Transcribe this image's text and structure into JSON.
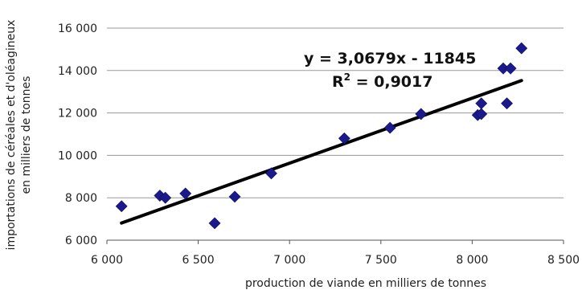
{
  "chart_data": {
    "type": "scatter",
    "title": "",
    "xlabel": "production de viande en milliers de tonnes",
    "ylabel_lines": [
      "importations de céréales et d'oléagineux",
      "en milliers de tonnes"
    ],
    "xlim": [
      6000,
      8500
    ],
    "ylim": [
      6000,
      16000
    ],
    "x_ticks": [
      6000,
      6500,
      7000,
      7500,
      8000,
      8500
    ],
    "x_tick_labels": [
      "6 000",
      "6 500",
      "7 000",
      "7 500",
      "8 000",
      "8 500"
    ],
    "y_ticks": [
      6000,
      8000,
      10000,
      12000,
      14000,
      16000
    ],
    "y_tick_labels": [
      "6 000",
      "8 000",
      "10 000",
      "12 000",
      "14 000",
      "16 000"
    ],
    "grid": "horizontal",
    "marker_color": "#1a1a8c",
    "trend_color": "#000000",
    "points": [
      {
        "x": 6080,
        "y": 7600
      },
      {
        "x": 6290,
        "y": 8100
      },
      {
        "x": 6320,
        "y": 8000
      },
      {
        "x": 6430,
        "y": 8200
      },
      {
        "x": 6590,
        "y": 6800
      },
      {
        "x": 6700,
        "y": 8050
      },
      {
        "x": 6900,
        "y": 9150
      },
      {
        "x": 7300,
        "y": 10800
      },
      {
        "x": 7550,
        "y": 11300
      },
      {
        "x": 7720,
        "y": 11950
      },
      {
        "x": 8030,
        "y": 11900
      },
      {
        "x": 8050,
        "y": 11950
      },
      {
        "x": 8050,
        "y": 12450
      },
      {
        "x": 8170,
        "y": 14100
      },
      {
        "x": 8190,
        "y": 12450
      },
      {
        "x": 8210,
        "y": 14100
      },
      {
        "x": 8270,
        "y": 15050
      }
    ],
    "trendline": {
      "slope": 3.0679,
      "intercept": -11845,
      "x_range": [
        6080,
        8270
      ],
      "equation_label": "y = 3,0679x - 11845",
      "r2_prefix": "R",
      "r2_sup": "2",
      "r2_value": " = 0,9017"
    }
  }
}
